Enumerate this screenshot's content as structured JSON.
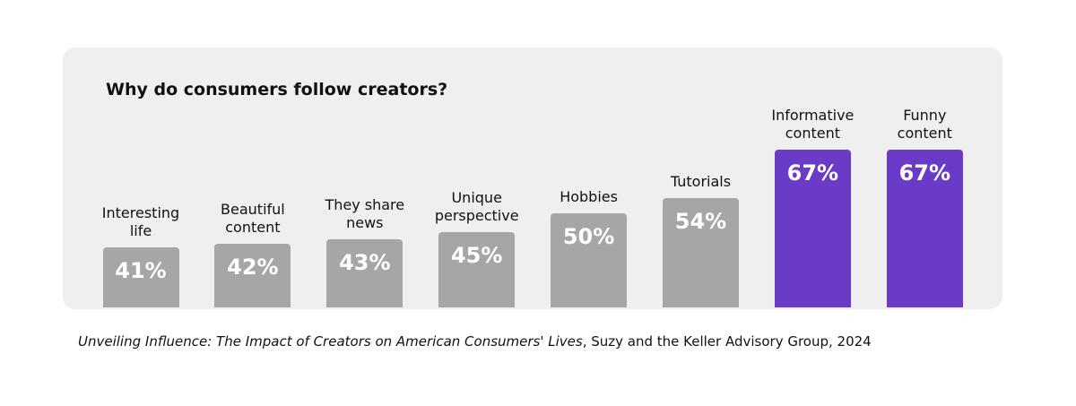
{
  "chart_data": {
    "type": "bar",
    "title": "Why do consumers follow creators?",
    "categories": [
      "Interesting life",
      "Beautiful content",
      "They share news",
      "Unique perspective",
      "Hobbies",
      "Tutorials",
      "Informative content",
      "Funny content"
    ],
    "values": [
      41,
      42,
      43,
      45,
      50,
      54,
      67,
      67
    ],
    "value_labels": [
      "41%",
      "42%",
      "43%",
      "45%",
      "50%",
      "54%",
      "67%",
      "67%"
    ],
    "colors": [
      "#a6a6a6",
      "#a6a6a6",
      "#a6a6a6",
      "#a6a6a6",
      "#a6a6a6",
      "#a6a6a6",
      "#6a3bc6",
      "#6a3bc6"
    ],
    "ylim": [
      25,
      70
    ],
    "source": "Unveiling Influence: The Impact of Creators on American Consumers' Lives",
    "source_detail": ", Suzy and the Keller Advisory Group, 2024"
  }
}
